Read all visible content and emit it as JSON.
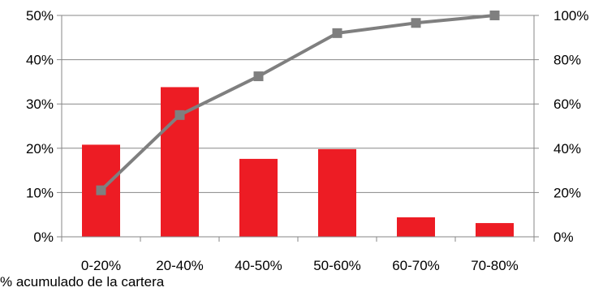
{
  "chart_data": {
    "type": "bar",
    "categories": [
      "0-20%",
      "20-40%",
      "40-50%",
      "50-60%",
      "60-70%",
      "70-80%"
    ],
    "series": [
      {
        "type": "bar",
        "axis": "left",
        "color": "#ED1C24",
        "values": [
          20.8,
          33.8,
          17.6,
          19.8,
          4.4,
          3.1
        ]
      },
      {
        "type": "line",
        "axis": "right",
        "color": "#7F7F7F",
        "marker": "square",
        "values": [
          21,
          55,
          72.5,
          92,
          96.6,
          100
        ]
      }
    ],
    "yticks_left": [
      "0%",
      "10%",
      "20%",
      "30%",
      "40%",
      "50%"
    ],
    "yticks_right": [
      "0%",
      "20%",
      "40%",
      "60%",
      "80%",
      "100%"
    ],
    "ylim_left": [
      0,
      50
    ],
    "ylim_right": [
      0,
      100
    ],
    "gridlines": true,
    "footnote": "% acumulado de la cartera"
  }
}
